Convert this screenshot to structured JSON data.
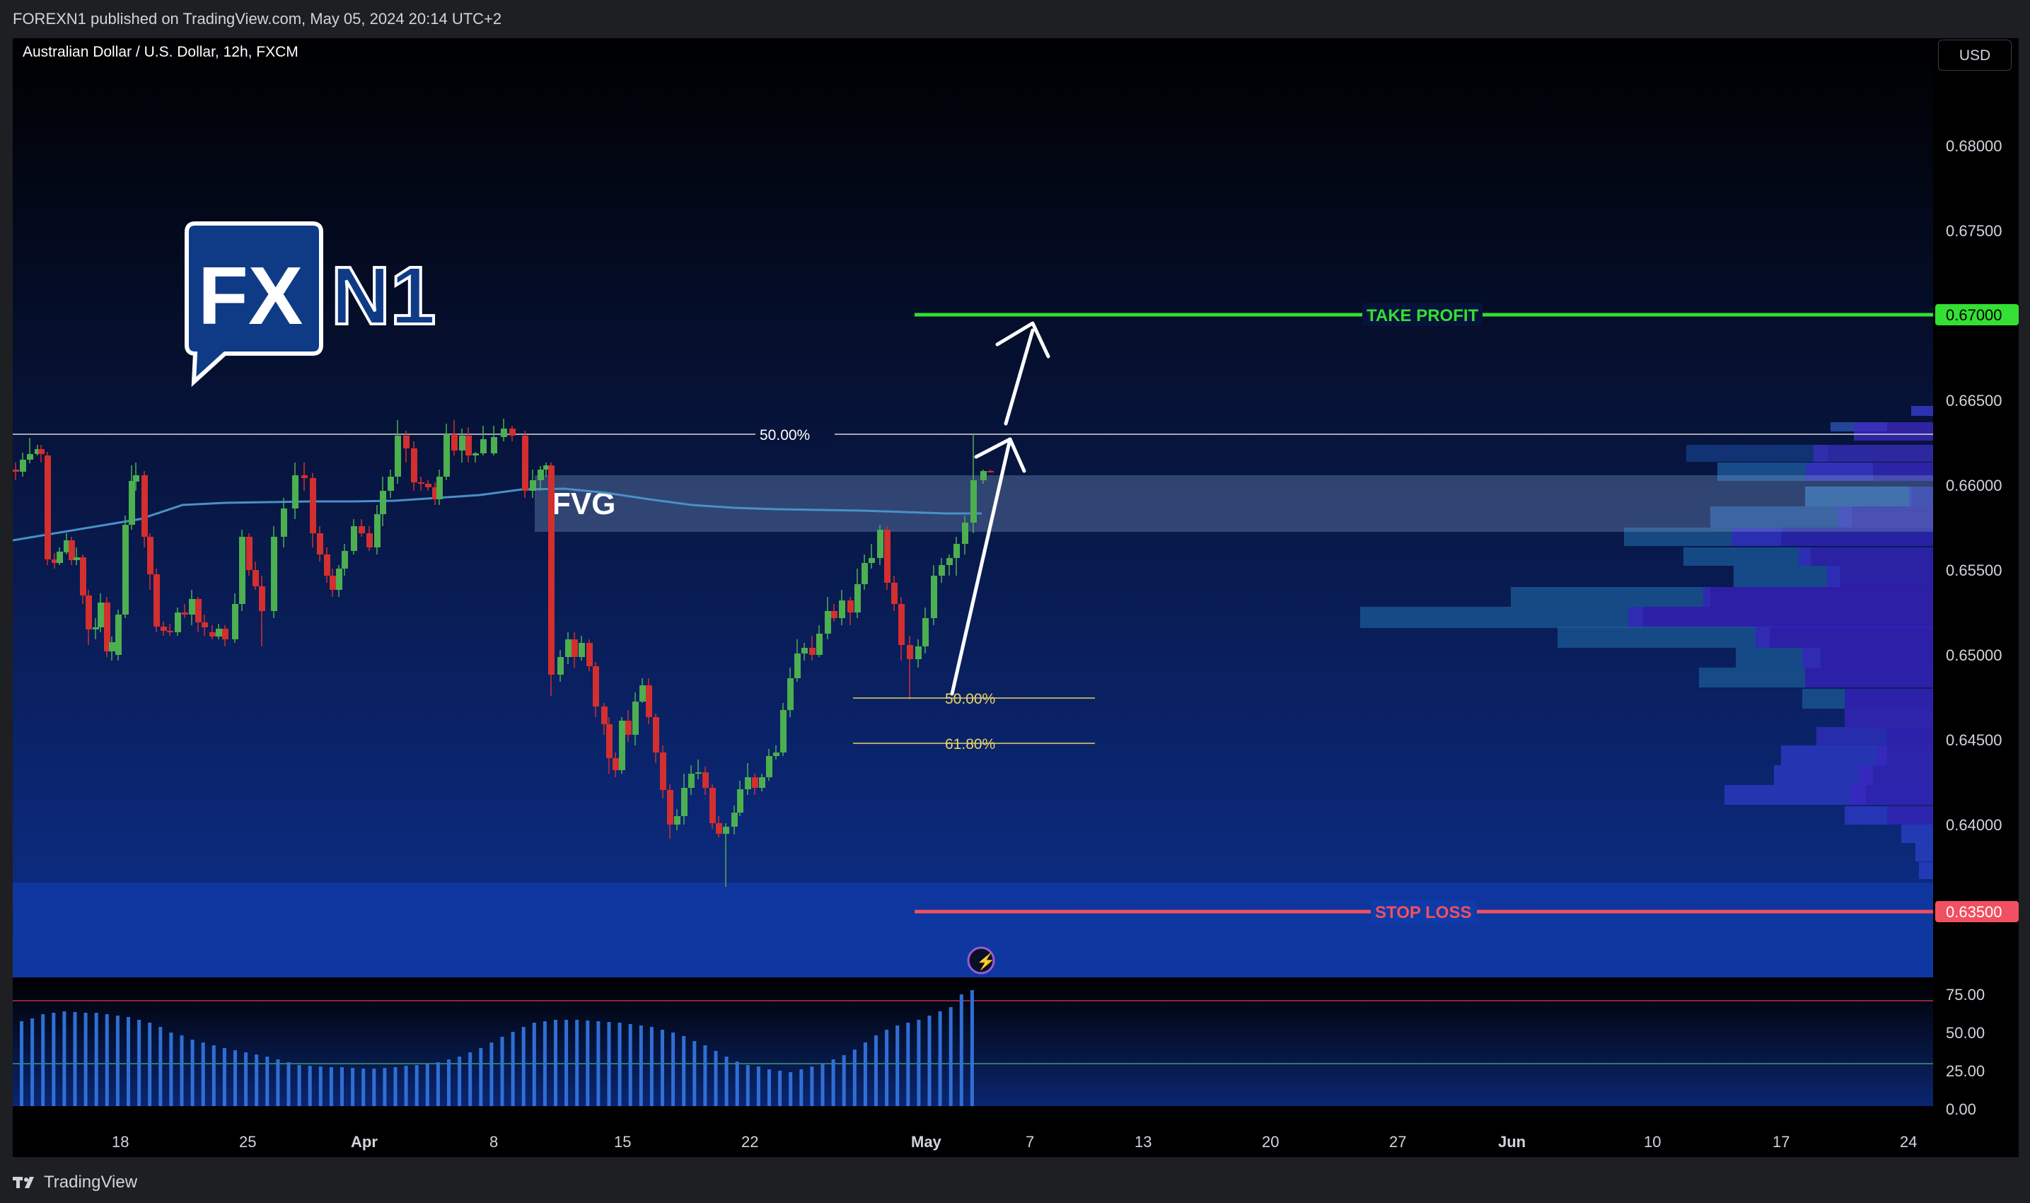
{
  "header": {
    "text": "FOREXN1 published on TradingView.com, May 05, 2024 20:14 UTC+2"
  },
  "chart": {
    "symbol": "Australian Dollar / U.S. Dollar, 12h, FXCM",
    "currency": "USD",
    "price_ticks": [
      "0.68000",
      "0.67500",
      "0.67000",
      "0.66500",
      "0.66000",
      "0.65500",
      "0.65000",
      "0.64500",
      "0.64000",
      "0.63500"
    ],
    "take_profit": {
      "label": "TAKE PROFIT",
      "price": "0.67000",
      "color": "#33e033"
    },
    "stop_loss": {
      "label": "STOP LOSS",
      "price": "0.63500",
      "color": "#f05060"
    },
    "fvg_label": "FVG",
    "fib_top": "50.00%",
    "fib_mid": "50.00%",
    "fib_low": "61.80%",
    "logo": {
      "fx": "FX",
      "n1": "N1"
    }
  },
  "oscillator": {
    "ticks": [
      "75.00",
      "50.00",
      "25.00",
      "0.00"
    ]
  },
  "time_axis": {
    "labels": [
      "18",
      "25",
      "Apr",
      "8",
      "15",
      "22",
      "May",
      "7",
      "13",
      "20",
      "27",
      "Jun",
      "10",
      "17",
      "24"
    ]
  },
  "footer": {
    "brand": "TradingView"
  },
  "colors": {
    "up": "#4caf50",
    "down": "#d32f2f",
    "ma": "#4a90c8",
    "osc": "#2f6fd6"
  }
}
